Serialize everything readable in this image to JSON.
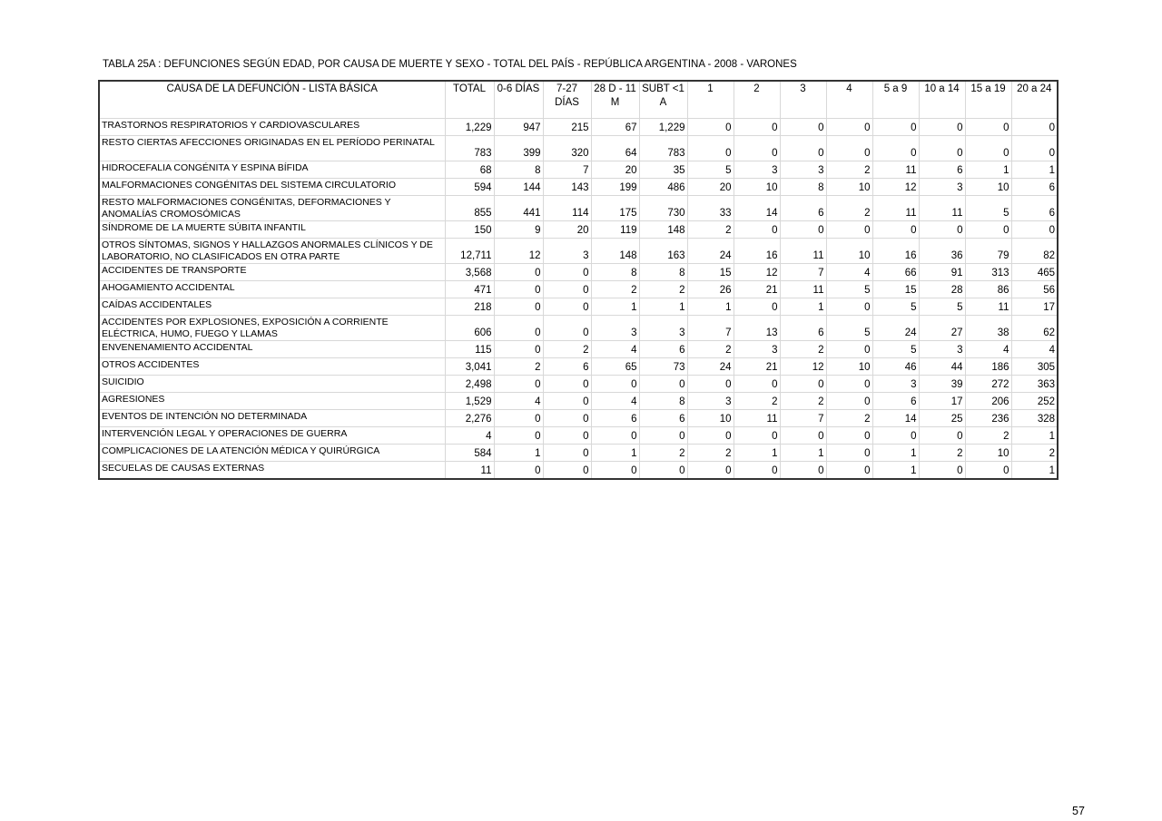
{
  "title": "TABLA 25A : DEFUNCIONES SEGÚN EDAD, POR CAUSA DE MUERTE Y SEXO - TOTAL DEL PAÍS - REPÚBLICA ARGENTINA - 2008 - VARONES",
  "headers": [
    "CAUSA DE LA DEFUNCIÓN - LISTA BÁSICA",
    "TOTAL",
    "0-6 DÍAS",
    "7-27 DÍAS",
    "28 D - 11 M",
    "SUBT <1 A",
    "1",
    "2",
    "3",
    "4",
    "5 a 9",
    "10 a 14",
    "15 a 19",
    "20 a 24"
  ],
  "rows": [
    {
      "cause": "TRASTORNOS RESPIRATORIOS Y CARDIOVASCULARES",
      "tall": false,
      "values": [
        "1,229",
        "947",
        "215",
        "67",
        "1,229",
        "0",
        "0",
        "0",
        "0",
        "0",
        "0",
        "0",
        "0"
      ]
    },
    {
      "cause": "RESTO CIERTAS AFECCIONES ORIGINADAS EN EL PERÍODO PERINATAL",
      "tall": true,
      "values": [
        "783",
        "399",
        "320",
        "64",
        "783",
        "0",
        "0",
        "0",
        "0",
        "0",
        "0",
        "0",
        "0"
      ]
    },
    {
      "cause": "HIDROCEFALIA CONGÉNITA Y ESPINA BÍFIDA",
      "tall": false,
      "values": [
        "68",
        "8",
        "7",
        "20",
        "35",
        "5",
        "3",
        "3",
        "2",
        "11",
        "6",
        "1",
        "1"
      ]
    },
    {
      "cause": "MALFORMACIONES CONGÉNITAS DEL SISTEMA CIRCULATORIO",
      "tall": false,
      "values": [
        "594",
        "144",
        "143",
        "199",
        "486",
        "20",
        "10",
        "8",
        "10",
        "12",
        "3",
        "10",
        "6"
      ]
    },
    {
      "cause": "RESTO MALFORMACIONES CONGÉNITAS, DEFORMACIONES Y ANOMALÍAS CROMOSÓMICAS",
      "tall": true,
      "values": [
        "855",
        "441",
        "114",
        "175",
        "730",
        "33",
        "14",
        "6",
        "2",
        "11",
        "11",
        "5",
        "6"
      ]
    },
    {
      "cause": "SÍNDROME DE LA MUERTE SÚBITA INFANTIL",
      "tall": false,
      "values": [
        "150",
        "9",
        "20",
        "119",
        "148",
        "2",
        "0",
        "0",
        "0",
        "0",
        "0",
        "0",
        "0"
      ]
    },
    {
      "cause": "OTROS SÍNTOMAS, SIGNOS Y HALLAZGOS ANORMALES CLÍNICOS Y DE LABORATORIO, NO CLASIFICADOS EN OTRA PARTE",
      "tall": true,
      "values": [
        "12,711",
        "12",
        "3",
        "148",
        "163",
        "24",
        "16",
        "11",
        "10",
        "16",
        "36",
        "79",
        "82"
      ]
    },
    {
      "cause": "ACCIDENTES DE TRANSPORTE",
      "tall": false,
      "values": [
        "3,568",
        "0",
        "0",
        "8",
        "8",
        "15",
        "12",
        "7",
        "4",
        "66",
        "91",
        "313",
        "465"
      ]
    },
    {
      "cause": "AHOGAMIENTO ACCIDENTAL",
      "tall": false,
      "values": [
        "471",
        "0",
        "0",
        "2",
        "2",
        "26",
        "21",
        "11",
        "5",
        "15",
        "28",
        "86",
        "56"
      ]
    },
    {
      "cause": "CAÍDAS ACCIDENTALES",
      "tall": false,
      "values": [
        "218",
        "0",
        "0",
        "1",
        "1",
        "1",
        "0",
        "1",
        "0",
        "5",
        "5",
        "11",
        "17"
      ]
    },
    {
      "cause": "ACCIDENTES POR EXPLOSIONES, EXPOSICIÓN A CORRIENTE ELÉCTRICA, HUMO, FUEGO Y LLAMAS",
      "tall": true,
      "values": [
        "606",
        "0",
        "0",
        "3",
        "3",
        "7",
        "13",
        "6",
        "5",
        "24",
        "27",
        "38",
        "62"
      ]
    },
    {
      "cause": "ENVENENAMIENTO ACCIDENTAL",
      "tall": false,
      "values": [
        "115",
        "0",
        "2",
        "4",
        "6",
        "2",
        "3",
        "2",
        "0",
        "5",
        "3",
        "4",
        "4"
      ]
    },
    {
      "cause": "OTROS ACCIDENTES",
      "tall": false,
      "values": [
        "3,041",
        "2",
        "6",
        "65",
        "73",
        "24",
        "21",
        "12",
        "10",
        "46",
        "44",
        "186",
        "305"
      ]
    },
    {
      "cause": "SUICIDIO",
      "tall": false,
      "values": [
        "2,498",
        "0",
        "0",
        "0",
        "0",
        "0",
        "0",
        "0",
        "0",
        "3",
        "39",
        "272",
        "363"
      ]
    },
    {
      "cause": "AGRESIONES",
      "tall": false,
      "values": [
        "1,529",
        "4",
        "0",
        "4",
        "8",
        "3",
        "2",
        "2",
        "0",
        "6",
        "17",
        "206",
        "252"
      ]
    },
    {
      "cause": "EVENTOS DE INTENCIÓN NO DETERMINADA",
      "tall": false,
      "values": [
        "2,276",
        "0",
        "0",
        "6",
        "6",
        "10",
        "11",
        "7",
        "2",
        "14",
        "25",
        "236",
        "328"
      ]
    },
    {
      "cause": "INTERVENCIÓN LEGAL Y OPERACIONES DE GUERRA",
      "tall": false,
      "values": [
        "4",
        "0",
        "0",
        "0",
        "0",
        "0",
        "0",
        "0",
        "0",
        "0",
        "0",
        "2",
        "1"
      ]
    },
    {
      "cause": "COMPLICACIONES DE LA ATENCIÓN MÉDICA Y QUIRÚRGICA",
      "tall": false,
      "values": [
        "584",
        "1",
        "0",
        "1",
        "2",
        "2",
        "1",
        "1",
        "0",
        "1",
        "2",
        "10",
        "2"
      ]
    },
    {
      "cause": "SECUELAS DE CAUSAS EXTERNAS",
      "tall": false,
      "values": [
        "11",
        "0",
        "0",
        "0",
        "0",
        "0",
        "0",
        "0",
        "0",
        "1",
        "0",
        "0",
        "1"
      ]
    }
  ],
  "page_number": "57"
}
